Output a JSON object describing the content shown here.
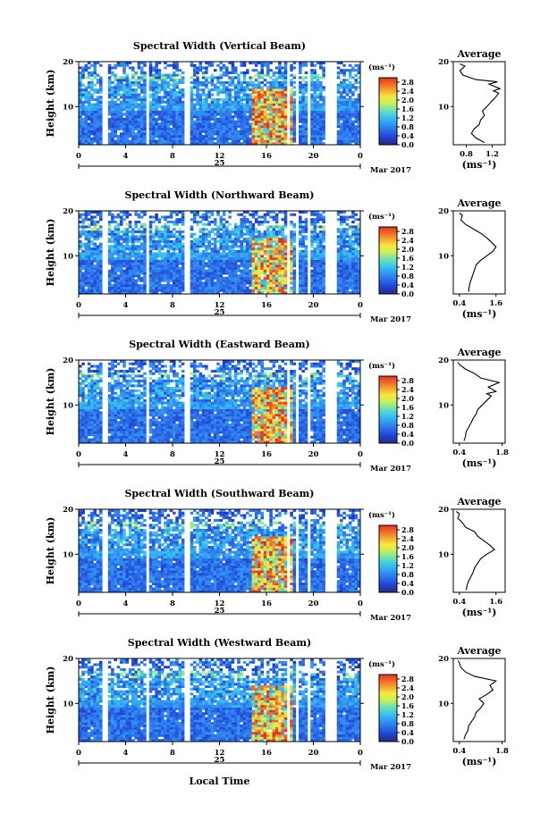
{
  "chart_data": {
    "type": "heatmap",
    "panel_titles": [
      "Spectral Width (Vertical Beam)",
      "Spectral Width (Northward Beam)",
      "Spectral Width (Eastward Beam)",
      "Spectral Width (Southward Beam)",
      "Spectral Width (Westward Beam)"
    ],
    "ylabel": "Height (km)",
    "xlabel": "Local Time",
    "x_ticks": [
      "0",
      "4",
      "8",
      "12",
      "16",
      "20",
      "0"
    ],
    "x_range_hours": [
      0,
      24
    ],
    "y_ticks": [
      "20",
      "10"
    ],
    "y_range_km": [
      1.5,
      20
    ],
    "day_label": "25",
    "month_year": "Mar 2017",
    "colorbar_unit": "(ms⁻¹)",
    "colorbar_ticks": [
      "2.8",
      "2.4",
      "2.0",
      "1.6",
      "1.2",
      "0.8",
      "0.4",
      "0.0"
    ],
    "colorbar_range": [
      0,
      3.0
    ],
    "data_gaps_hours": [
      [
        2.0,
        2.5
      ],
      [
        5.7,
        6.1
      ],
      [
        9.1,
        9.6
      ],
      [
        17.8,
        18.0
      ],
      [
        18.6,
        18.8
      ],
      [
        19.5,
        19.7
      ],
      [
        21.0,
        22.1
      ]
    ],
    "high_width_region": {
      "hours": [
        14.8,
        18.3
      ],
      "height_km": [
        1.5,
        14.0
      ],
      "value": 2.8
    },
    "average_title": "Average",
    "average_xlabel": "(ms⁻¹)",
    "average_profiles": [
      {
        "x_ticks": [
          "0.8",
          "1.2"
        ],
        "x_range": [
          0.6,
          1.4
        ],
        "points": [
          [
            1.08,
            2
          ],
          [
            0.95,
            3
          ],
          [
            0.88,
            4
          ],
          [
            0.92,
            5
          ],
          [
            1.0,
            6
          ],
          [
            1.02,
            7
          ],
          [
            1.08,
            8
          ],
          [
            1.05,
            9
          ],
          [
            1.12,
            10
          ],
          [
            1.18,
            11
          ],
          [
            1.25,
            12
          ],
          [
            1.3,
            13
          ],
          [
            1.22,
            13.5
          ],
          [
            1.32,
            14
          ],
          [
            1.15,
            15
          ],
          [
            1.28,
            15.5
          ],
          [
            0.95,
            16
          ],
          [
            0.75,
            17
          ],
          [
            0.7,
            18
          ],
          [
            0.78,
            19
          ],
          [
            0.7,
            19.5
          ]
        ]
      },
      {
        "x_ticks": [
          "0.4",
          "1.6"
        ],
        "x_range": [
          0.2,
          1.9
        ],
        "points": [
          [
            0.7,
            2
          ],
          [
            0.72,
            3
          ],
          [
            0.75,
            4
          ],
          [
            0.8,
            5
          ],
          [
            0.85,
            6
          ],
          [
            0.9,
            7
          ],
          [
            0.95,
            8
          ],
          [
            1.1,
            9
          ],
          [
            1.3,
            10
          ],
          [
            1.5,
            11
          ],
          [
            1.6,
            12
          ],
          [
            1.45,
            13
          ],
          [
            1.3,
            14
          ],
          [
            1.1,
            15
          ],
          [
            0.85,
            16
          ],
          [
            0.6,
            17
          ],
          [
            0.45,
            18
          ],
          [
            0.5,
            19
          ],
          [
            0.4,
            19.5
          ]
        ]
      },
      {
        "x_ticks": [
          "0.4",
          "1.8"
        ],
        "x_range": [
          0.2,
          1.9
        ],
        "points": [
          [
            0.55,
            2
          ],
          [
            0.6,
            3
          ],
          [
            0.62,
            4
          ],
          [
            0.7,
            5
          ],
          [
            0.78,
            6
          ],
          [
            0.85,
            7
          ],
          [
            0.95,
            8
          ],
          [
            1.0,
            9
          ],
          [
            1.15,
            10
          ],
          [
            1.3,
            11
          ],
          [
            1.45,
            12
          ],
          [
            1.3,
            12.5
          ],
          [
            1.6,
            13
          ],
          [
            1.35,
            14
          ],
          [
            1.7,
            15
          ],
          [
            1.1,
            16
          ],
          [
            0.9,
            17
          ],
          [
            0.6,
            18
          ],
          [
            0.4,
            19
          ],
          [
            0.35,
            19.5
          ]
        ]
      },
      {
        "x_ticks": [
          "0.4",
          "1.6"
        ],
        "x_range": [
          0.2,
          1.9
        ],
        "points": [
          [
            0.62,
            2
          ],
          [
            0.65,
            3
          ],
          [
            0.7,
            4
          ],
          [
            0.78,
            5
          ],
          [
            0.85,
            6
          ],
          [
            0.9,
            7
          ],
          [
            1.0,
            8
          ],
          [
            1.1,
            9
          ],
          [
            1.3,
            10
          ],
          [
            1.55,
            11
          ],
          [
            1.4,
            12
          ],
          [
            1.2,
            13
          ],
          [
            1.0,
            14
          ],
          [
            0.9,
            15
          ],
          [
            0.6,
            16
          ],
          [
            0.5,
            17
          ],
          [
            0.35,
            18
          ],
          [
            0.4,
            19
          ],
          [
            0.3,
            19.5
          ]
        ]
      },
      {
        "x_ticks": [
          "0.4",
          "1.8"
        ],
        "x_range": [
          0.2,
          1.9
        ],
        "points": [
          [
            0.55,
            2
          ],
          [
            0.6,
            3
          ],
          [
            0.68,
            4
          ],
          [
            0.7,
            5
          ],
          [
            0.8,
            6
          ],
          [
            0.9,
            7
          ],
          [
            0.95,
            8
          ],
          [
            1.1,
            9
          ],
          [
            1.2,
            10
          ],
          [
            1.05,
            11
          ],
          [
            1.3,
            12
          ],
          [
            1.5,
            13
          ],
          [
            1.4,
            14
          ],
          [
            1.6,
            15
          ],
          [
            0.9,
            16
          ],
          [
            0.6,
            17
          ],
          [
            0.45,
            18
          ],
          [
            0.4,
            19
          ],
          [
            0.35,
            19.5
          ]
        ]
      }
    ]
  }
}
